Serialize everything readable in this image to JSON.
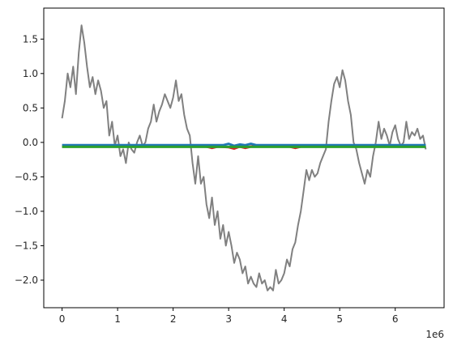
{
  "chart_data": {
    "type": "line",
    "title": "",
    "xlabel": "",
    "ylabel": "",
    "x_offset_text": "1e6",
    "xlim": [
      -0.33,
      6.88
    ],
    "ylim": [
      -2.4,
      1.95
    ],
    "x_ticks": [
      0,
      1,
      2,
      3,
      4,
      5,
      6
    ],
    "x_tick_labels": [
      "0",
      "1",
      "2",
      "3",
      "4",
      "5",
      "6"
    ],
    "y_ticks": [
      1.5,
      1.0,
      0.5,
      0.0,
      -0.5,
      -1.0,
      -1.5,
      -2.0
    ],
    "y_tick_labels": [
      "1.5",
      "1.0",
      "0.5",
      "0.0",
      "−0.5",
      "−1.0",
      "−1.5",
      "−2.0"
    ],
    "grid": false,
    "legend": "none",
    "series": [
      {
        "color": "#808080",
        "x": [
          0.0,
          0.05,
          0.1,
          0.15,
          0.2,
          0.25,
          0.3,
          0.35,
          0.4,
          0.45,
          0.5,
          0.55,
          0.6,
          0.65,
          0.7,
          0.75,
          0.8,
          0.85,
          0.9,
          0.95,
          1.0,
          1.05,
          1.1,
          1.15,
          1.2,
          1.25,
          1.3,
          1.35,
          1.4,
          1.45,
          1.5,
          1.55,
          1.6,
          1.65,
          1.7,
          1.75,
          1.8,
          1.85,
          1.9,
          1.95,
          2.0,
          2.05,
          2.1,
          2.15,
          2.2,
          2.25,
          2.3,
          2.35,
          2.4,
          2.45,
          2.5,
          2.55,
          2.6,
          2.65,
          2.7,
          2.75,
          2.8,
          2.85,
          2.9,
          2.95,
          3.0,
          3.05,
          3.1,
          3.15,
          3.2,
          3.25,
          3.3,
          3.35,
          3.4,
          3.45,
          3.5,
          3.55,
          3.6,
          3.65,
          3.7,
          3.75,
          3.8,
          3.85,
          3.9,
          3.95,
          4.0,
          4.05,
          4.1,
          4.15,
          4.2,
          4.25,
          4.3,
          4.35,
          4.4,
          4.45,
          4.5,
          4.55,
          4.6,
          4.65,
          4.7,
          4.75,
          4.8,
          4.85,
          4.9,
          4.95,
          5.0,
          5.05,
          5.1,
          5.15,
          5.2,
          5.25,
          5.3,
          5.35,
          5.4,
          5.45,
          5.5,
          5.55,
          5.6,
          5.65,
          5.7,
          5.75,
          5.8,
          5.85,
          5.9,
          5.95,
          6.0,
          6.05,
          6.1,
          6.15,
          6.2,
          6.25,
          6.3,
          6.35,
          6.4,
          6.45,
          6.5,
          6.55
        ],
        "y": [
          0.35,
          0.6,
          1.0,
          0.8,
          1.1,
          0.7,
          1.3,
          1.7,
          1.45,
          1.1,
          0.8,
          0.95,
          0.7,
          0.9,
          0.75,
          0.5,
          0.6,
          0.1,
          0.3,
          -0.05,
          0.1,
          -0.2,
          -0.1,
          -0.3,
          0.0,
          -0.1,
          -0.15,
          0.0,
          0.1,
          -0.05,
          0.0,
          0.2,
          0.3,
          0.55,
          0.3,
          0.45,
          0.55,
          0.7,
          0.6,
          0.5,
          0.65,
          0.9,
          0.6,
          0.7,
          0.4,
          0.2,
          0.1,
          -0.3,
          -0.6,
          -0.2,
          -0.6,
          -0.5,
          -0.9,
          -1.1,
          -0.8,
          -1.2,
          -1.0,
          -1.4,
          -1.2,
          -1.5,
          -1.3,
          -1.5,
          -1.75,
          -1.6,
          -1.7,
          -1.9,
          -1.8,
          -2.05,
          -1.95,
          -2.05,
          -2.1,
          -1.9,
          -2.05,
          -2.0,
          -2.15,
          -2.1,
          -2.15,
          -1.85,
          -2.05,
          -2.0,
          -1.9,
          -1.7,
          -1.8,
          -1.55,
          -1.45,
          -1.2,
          -1.0,
          -0.7,
          -0.4,
          -0.55,
          -0.4,
          -0.5,
          -0.45,
          -0.3,
          -0.2,
          -0.1,
          0.3,
          0.6,
          0.85,
          0.95,
          0.8,
          1.05,
          0.9,
          0.6,
          0.4,
          0.0,
          -0.1,
          -0.3,
          -0.45,
          -0.6,
          -0.4,
          -0.5,
          -0.2,
          0.0,
          0.3,
          0.05,
          0.2,
          0.1,
          -0.05,
          0.15,
          0.25,
          0.05,
          -0.05,
          0.0,
          0.3,
          0.05,
          0.15,
          0.1,
          0.2,
          0.05,
          0.1,
          -0.1
        ]
      },
      {
        "color": "#d62728",
        "x": [
          0.0,
          2.6,
          2.7,
          2.8,
          3.0,
          3.1,
          3.2,
          3.3,
          3.4,
          3.5,
          4.1,
          4.2,
          4.3,
          6.55
        ],
        "y": [
          -0.06,
          -0.06,
          -0.08,
          -0.06,
          -0.07,
          -0.09,
          -0.06,
          -0.08,
          -0.06,
          -0.06,
          -0.06,
          -0.08,
          -0.06,
          -0.06
        ]
      },
      {
        "color": "#1f77b4",
        "x": [
          0.0,
          2.9,
          3.0,
          3.1,
          3.2,
          3.3,
          3.4,
          3.5,
          4.3,
          6.55
        ],
        "y": [
          -0.04,
          -0.04,
          -0.02,
          -0.05,
          -0.03,
          -0.04,
          -0.02,
          -0.04,
          -0.04,
          -0.04
        ]
      },
      {
        "color": "#2ca02c",
        "x": [
          0.0,
          6.55
        ],
        "y": [
          -0.065,
          -0.065
        ]
      }
    ]
  }
}
